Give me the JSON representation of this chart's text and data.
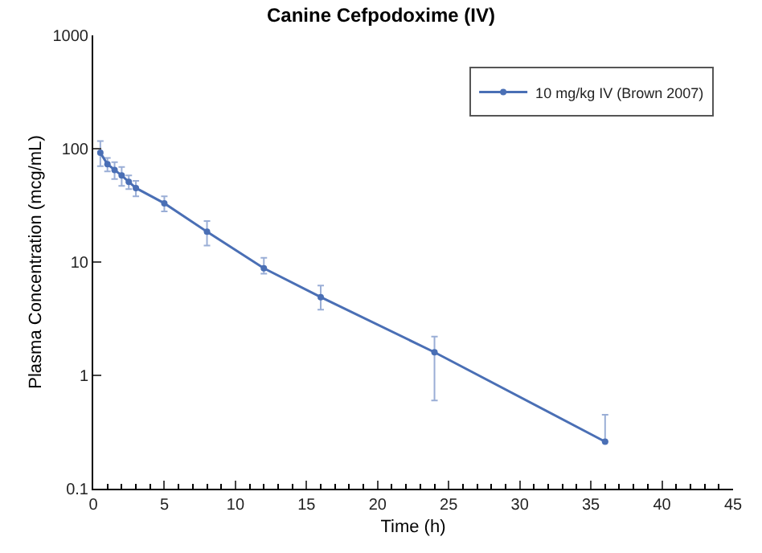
{
  "chart_data": {
    "type": "line",
    "title": "Canine Cefpodoxime (IV)",
    "xlabel": "Time (h)",
    "ylabel": "Plasma Concentration (mcg/mL)",
    "x": [
      0.5,
      1,
      1.5,
      2,
      2.5,
      3,
      5,
      8,
      12,
      16,
      24,
      36
    ],
    "series": [
      {
        "name": "10 mg/kg IV (Brown 2007)",
        "color": "#4a6fb5",
        "values": [
          92,
          73,
          65,
          58,
          51,
          45,
          33,
          18.5,
          8.8,
          4.9,
          1.6,
          0.26
        ],
        "errors": [
          [
            70,
            117
          ],
          [
            63,
            83
          ],
          [
            54,
            76
          ],
          [
            47,
            69
          ],
          [
            44,
            58
          ],
          [
            38,
            52
          ],
          [
            28,
            38
          ],
          [
            14,
            23
          ],
          [
            7.9,
            10.9
          ],
          [
            3.8,
            6.2
          ],
          [
            0.6,
            2.2
          ],
          [
            0.26,
            0.45
          ]
        ]
      }
    ],
    "log": "y",
    "xlim": [
      0,
      45
    ],
    "xticks": [
      0,
      5,
      10,
      15,
      20,
      25,
      30,
      35,
      40,
      45
    ],
    "ylim": [
      0.1,
      1000
    ],
    "yticks": [
      0.1,
      1,
      10,
      100,
      1000
    ],
    "legend": "top right",
    "marker": "circle",
    "line_style": "solid"
  }
}
